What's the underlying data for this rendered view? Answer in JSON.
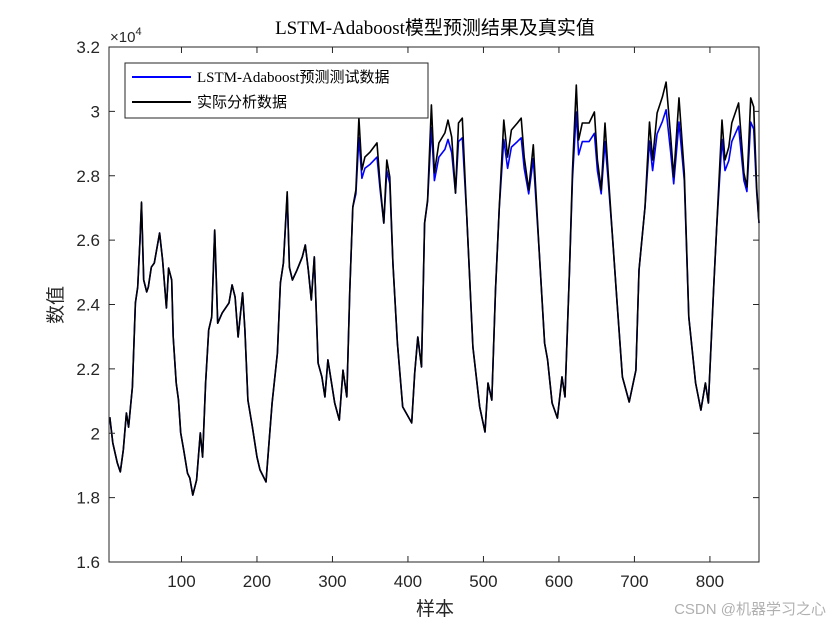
{
  "chart_data": {
    "type": "line",
    "title": "LSTM-Adaboost模型预测结果及真实值",
    "xlabel": "样本",
    "ylabel": "数值",
    "y_exponent_label": "×10",
    "y_exponent_power": "4",
    "xlim": [
      4,
      865
    ],
    "ylim": [
      16000,
      32000
    ],
    "x_ticks": [
      100,
      200,
      300,
      400,
      500,
      600,
      700,
      800
    ],
    "x_tick_labels": [
      "100",
      "200",
      "300",
      "400",
      "500",
      "600",
      "700",
      "800"
    ],
    "y_ticks": [
      16000,
      18000,
      20000,
      22000,
      24000,
      26000,
      28000,
      30000,
      32000
    ],
    "y_tick_labels": [
      "1.6",
      "1.8",
      "2",
      "2.2",
      "2.4",
      "2.6",
      "2.8",
      "3",
      "3.2"
    ],
    "grid": false,
    "legend_position": "top-left",
    "x": [
      5,
      9,
      15,
      19,
      23,
      27,
      30,
      35,
      39,
      42,
      45,
      47,
      50,
      54,
      56,
      60,
      64,
      71,
      75,
      80,
      83,
      87,
      89,
      93,
      96,
      99,
      103,
      108,
      111,
      115,
      120,
      125,
      128,
      132,
      136,
      140,
      144,
      148,
      154,
      163,
      167,
      171,
      175,
      181,
      184,
      188,
      194,
      200,
      204,
      212,
      216,
      220,
      227,
      231,
      235,
      240,
      243,
      247,
      253,
      260,
      264,
      268,
      272,
      276,
      281,
      286,
      290,
      294,
      303,
      309,
      314,
      319,
      323,
      327,
      331,
      335,
      339,
      343,
      350,
      359,
      363,
      368,
      372,
      376,
      380,
      386,
      393,
      405,
      409,
      413,
      418,
      422,
      426,
      431,
      435,
      441,
      449,
      453,
      458,
      463,
      467,
      472,
      478,
      486,
      495,
      502,
      506,
      511,
      516,
      521,
      527,
      532,
      537,
      545,
      550,
      554,
      560,
      566,
      574,
      581,
      585,
      591,
      598,
      604,
      608,
      614,
      618,
      623,
      626,
      631,
      640,
      647,
      651,
      656,
      661,
      665,
      671,
      677,
      684,
      693,
      702,
      706,
      714,
      720,
      724,
      730,
      737,
      742,
      748,
      752,
      759,
      766,
      772,
      781,
      788,
      794,
      798,
      805,
      809,
      816,
      820,
      825,
      829,
      838,
      845,
      849,
      854,
      858,
      862,
      865
    ],
    "series": [
      {
        "name": "LSTM-Adaboost预测测试数据",
        "color": "#0000ff",
        "values": [
          20500,
          19700,
          19080,
          18800,
          19480,
          20630,
          20190,
          21440,
          24050,
          24540,
          26000,
          27140,
          24760,
          24390,
          24540,
          25160,
          25290,
          26220,
          25380,
          23890,
          25130,
          24760,
          22990,
          21560,
          21030,
          20010,
          19480,
          18760,
          18610,
          18080,
          18550,
          20010,
          19260,
          21560,
          23210,
          23610,
          26310,
          23420,
          23740,
          24050,
          24610,
          24230,
          22990,
          24360,
          23210,
          21030,
          20190,
          19260,
          18860,
          18490,
          19700,
          20940,
          22490,
          24670,
          25290,
          27390,
          25160,
          24760,
          25070,
          25480,
          25850,
          25070,
          24140,
          25480,
          22180,
          21750,
          21130,
          22280,
          20940,
          20410,
          21960,
          21130,
          24450,
          27020,
          27440,
          29180,
          27920,
          28230,
          28360,
          28580,
          27600,
          26530,
          28160,
          27750,
          25290,
          22800,
          20820,
          20320,
          21870,
          22990,
          22060,
          26530,
          27200,
          29500,
          27850,
          28580,
          28820,
          29130,
          28720,
          27460,
          29060,
          29180,
          26720,
          22680,
          20820,
          20040,
          21560,
          21030,
          24450,
          27020,
          29130,
          28230,
          28890,
          29060,
          29180,
          28230,
          27440,
          28530,
          25600,
          22800,
          22280,
          20940,
          20470,
          21750,
          21130,
          25070,
          27920,
          29980,
          28650,
          29060,
          29060,
          29320,
          28160,
          27440,
          29060,
          27920,
          26100,
          24050,
          21750,
          20970,
          21960,
          25070,
          27020,
          29080,
          28160,
          29300,
          29690,
          30050,
          28720,
          27750,
          29670,
          27850,
          23610,
          21560,
          20720,
          21560,
          20940,
          24540,
          26410,
          29130,
          28160,
          28470,
          29060,
          29540,
          27850,
          27510,
          29670,
          29450,
          27480,
          26530
        ]
      },
      {
        "name": "实际分析数据",
        "color": "#000000",
        "values": [
          20500,
          19700,
          19080,
          18800,
          19480,
          20630,
          20190,
          21440,
          24050,
          24540,
          26000,
          27180,
          24760,
          24390,
          24540,
          25160,
          25290,
          26220,
          25380,
          23890,
          25130,
          24760,
          22990,
          21560,
          21030,
          20010,
          19480,
          18760,
          18610,
          18080,
          18550,
          20010,
          19260,
          21560,
          23210,
          23610,
          26310,
          23420,
          23740,
          24050,
          24610,
          24230,
          22990,
          24360,
          23210,
          21030,
          20190,
          19260,
          18860,
          18490,
          19700,
          20940,
          22490,
          24670,
          25290,
          27500,
          25160,
          24760,
          25070,
          25480,
          25850,
          25070,
          24140,
          25480,
          22180,
          21750,
          21130,
          22280,
          20940,
          20410,
          21960,
          21130,
          24450,
          27030,
          27560,
          29790,
          28180,
          28580,
          28740,
          29020,
          27770,
          26530,
          28490,
          27960,
          25290,
          22800,
          20820,
          20320,
          21870,
          22990,
          22060,
          26530,
          27250,
          30200,
          28090,
          29020,
          29330,
          29730,
          29200,
          27460,
          29640,
          29790,
          26720,
          22680,
          20820,
          20040,
          21560,
          21030,
          24450,
          27030,
          29730,
          28580,
          29420,
          29640,
          29790,
          28580,
          27560,
          28960,
          25600,
          22800,
          22280,
          20940,
          20470,
          21750,
          21130,
          25070,
          28180,
          30820,
          29110,
          29640,
          29640,
          29980,
          28490,
          27560,
          29640,
          28180,
          26100,
          24050,
          21750,
          20970,
          21960,
          25070,
          27030,
          29670,
          28490,
          29950,
          30450,
          30910,
          29200,
          27960,
          30420,
          28090,
          23610,
          21560,
          20720,
          21560,
          20940,
          24540,
          26410,
          29730,
          28490,
          28890,
          29640,
          30260,
          28090,
          27650,
          30420,
          30140,
          27620,
          26530
        ]
      }
    ]
  },
  "watermark": "CSDN @机器学习之心"
}
